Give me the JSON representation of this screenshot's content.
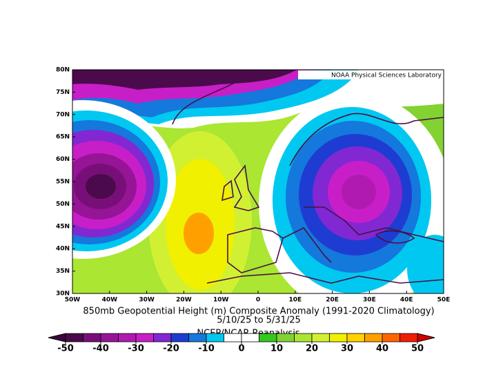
{
  "credit": "NOAA Physical Sciences Laboratory",
  "title": "850mb Geopotential Height (m) Composite Anomaly (1991-2020 Climatology)",
  "dates": "5/10/25  to 5/31/25",
  "source": "NCEP/NCAR Reanalysis",
  "lat_labels": [
    "80N",
    "75N",
    "70N",
    "65N",
    "60N",
    "55N",
    "50N",
    "45N",
    "40N",
    "35N",
    "30N"
  ],
  "lon_labels": [
    "50W",
    "40W",
    "30W",
    "20W",
    "10W",
    "0",
    "10E",
    "20E",
    "30E",
    "40E",
    "50E"
  ],
  "colorbar": {
    "ticks": [
      -50,
      -40,
      -30,
      -20,
      -10,
      0,
      10,
      20,
      30,
      40,
      50
    ],
    "colors": [
      "#4b0a4b",
      "#780f78",
      "#961496",
      "#b01ab0",
      "#c81ec8",
      "#8228d2",
      "#1e3cd2",
      "#1478dc",
      "#00c8f0",
      "#ffffff",
      "#ffffff",
      "#32c81e",
      "#82d232",
      "#aae632",
      "#d2f032",
      "#f0f000",
      "#ffd200",
      "#ffa000",
      "#ff6400",
      "#f01e00"
    ],
    "under_color": "#3c053c",
    "over_color": "#d20000"
  }
}
